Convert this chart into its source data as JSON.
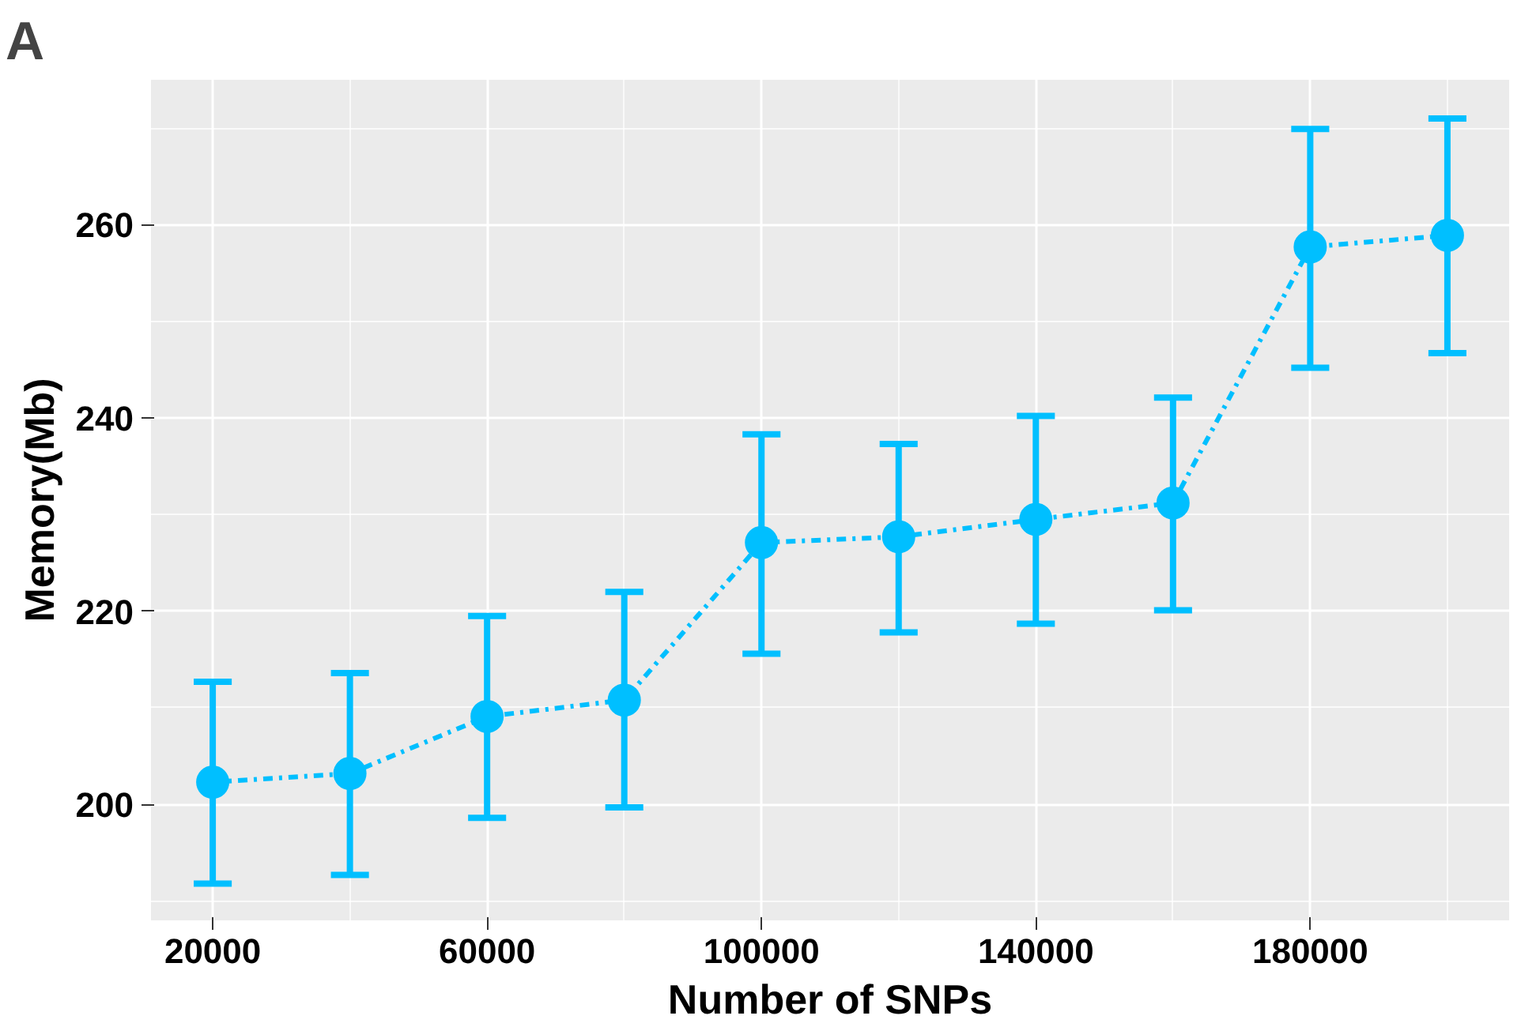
{
  "chart_data": {
    "type": "line",
    "xlabel": "Number of SNPs",
    "ylabel": "Memory(Mb)",
    "annotations": [
      "A"
    ],
    "x": [
      20000,
      40000,
      60000,
      80000,
      100000,
      120000,
      140000,
      160000,
      180000,
      200000
    ],
    "series": [
      {
        "color": "#00bfff",
        "values": [
          202.3,
          203.2,
          209.1,
          210.8,
          227.1,
          227.7,
          229.5,
          231.2,
          257.7,
          258.9
        ],
        "errors": [
          [
            191.8,
            212.7
          ],
          [
            192.7,
            213.6
          ],
          [
            198.6,
            219.5
          ],
          [
            199.7,
            222.0
          ],
          [
            215.6,
            238.3
          ],
          [
            217.8,
            237.3
          ],
          [
            218.7,
            240.2
          ],
          [
            220.1,
            242.1
          ],
          [
            245.2,
            269.9
          ],
          [
            246.7,
            271.0
          ]
        ]
      }
    ],
    "xlim": [
      11000,
      209000
    ],
    "ylim": [
      188,
      275
    ],
    "xticks": [
      20000,
      60000,
      100000,
      140000,
      180000
    ],
    "yticks": [
      200,
      220,
      240,
      260
    ],
    "grid": true,
    "marker": "circle",
    "line_style": "dashed"
  }
}
